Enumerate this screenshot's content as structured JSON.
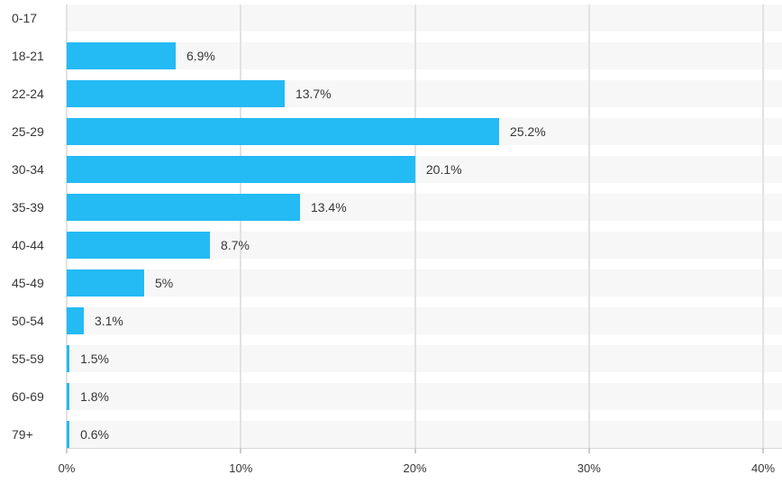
{
  "chart_data": {
    "type": "bar",
    "orientation": "horizontal",
    "title": "",
    "categories": [
      "0-17",
      "18-21",
      "22-24",
      "25-29",
      "30-34",
      "35-39",
      "40-44",
      "45-49",
      "50-54",
      "55-59",
      "60-69",
      "79+"
    ],
    "values": [
      0,
      6.9,
      13.7,
      25.2,
      20.1,
      13.4,
      8.7,
      5,
      3.1,
      1.5,
      1.8,
      0.6
    ],
    "value_labels": [
      "",
      "6.9%",
      "13.7%",
      "25.2%",
      "20.1%",
      "13.4%",
      "8.7%",
      "5%",
      "3.1%",
      "1.5%",
      "1.8%",
      "0.6%"
    ],
    "x_ticks": [
      0,
      10,
      20,
      30,
      40
    ],
    "x_tick_labels": [
      "0%",
      "10%",
      "20%",
      "30%",
      "40%"
    ],
    "xlim": [
      0,
      40
    ],
    "grid": "vertical-only",
    "legend": "none",
    "bar_display_pct": [
      0,
      6.26,
      12.52,
      24.84,
      20.02,
      13.4,
      8.23,
      4.45,
      0.98,
      0.16,
      0.16,
      0.16
    ],
    "colors": {
      "bar": "#24baf4",
      "row_track": "#f7f7f7",
      "gridline": "#e2e2e2",
      "axis_line": "#d9d9d9",
      "tick": "#cccccc",
      "text": "#373737",
      "background": "#ffffff"
    }
  }
}
